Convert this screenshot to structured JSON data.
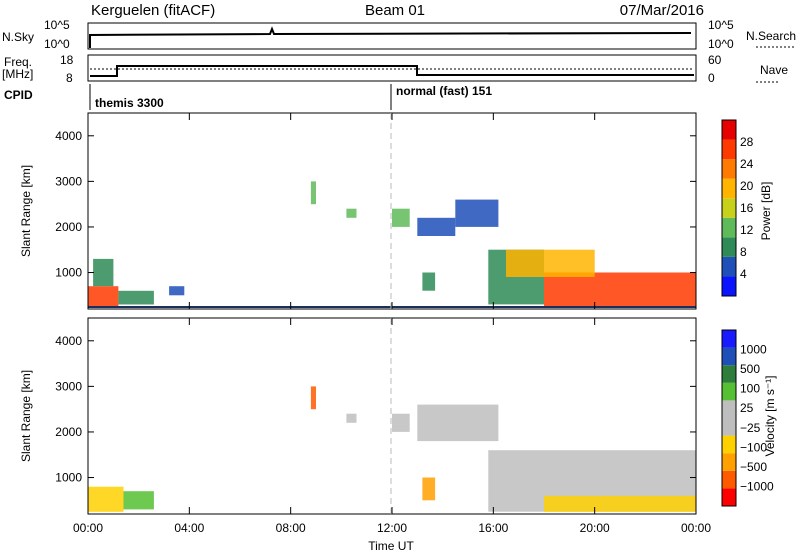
{
  "header": {
    "station": "Kerguelen (fitACF)",
    "beam": "Beam 01",
    "date": "07/Mar/2016"
  },
  "status_panels": {
    "nsky": {
      "label": "N.Sky",
      "ticks": [
        "10^5",
        "10^0"
      ]
    },
    "nsearch": {
      "label": "N.Search",
      "ticks": [
        "10^5",
        "10^0"
      ]
    },
    "freq": {
      "label_line1": "Freq.",
      "label_line2": "[MHz]",
      "ticks": [
        "18",
        "8"
      ]
    },
    "nave": {
      "label": "Nave",
      "ticks": [
        "60",
        "0"
      ]
    },
    "cpid": {
      "label": "CPID",
      "modes": [
        {
          "name": "themis 3300",
          "start_hour": 0
        },
        {
          "name": "normal (fast) 151",
          "start_hour": 12
        }
      ]
    }
  },
  "colors": {
    "power_scale": [
      "#0a14ff",
      "#1f4fb8",
      "#2e8b57",
      "#5fba5a",
      "#c8d11a",
      "#ffb400",
      "#ff7a00",
      "#ff3a00",
      "#e60000"
    ],
    "velocity_scale": [
      "#ff0000",
      "#ff5a00",
      "#ffa000",
      "#ffd000",
      "#bebebe",
      "#bebebe",
      "#55c033",
      "#2f7d3a",
      "#1f4fb8",
      "#1a1aff"
    ]
  },
  "chart_data": [
    {
      "type": "heatmap",
      "name": "power",
      "xlabel": "",
      "ylabel": "Slant Range [km]",
      "colorbar_label": "Power [dB]",
      "colorbar_ticks": [
        "28",
        "24",
        "20",
        "16",
        "12",
        "8",
        "4"
      ],
      "colorbar_range": [
        0,
        32
      ],
      "xlim_hours": [
        0,
        24
      ],
      "ylim": [
        200,
        4500
      ],
      "yticks": [
        "1000",
        "2000",
        "3000",
        "4000"
      ],
      "patches": [
        {
          "t0": 0.0,
          "t1": 1.2,
          "r0": 250,
          "r1": 700,
          "level": 26
        },
        {
          "t0": 0.2,
          "t1": 1.0,
          "r0": 700,
          "r1": 1300,
          "level": 10
        },
        {
          "t0": 1.2,
          "t1": 2.6,
          "r0": 300,
          "r1": 600,
          "level": 8
        },
        {
          "t0": 3.2,
          "t1": 3.8,
          "r0": 500,
          "r1": 700,
          "level": 7
        },
        {
          "t0": 8.8,
          "t1": 9.0,
          "r0": 2500,
          "r1": 3000,
          "level": 14
        },
        {
          "t0": 10.2,
          "t1": 10.6,
          "r0": 2200,
          "r1": 2400,
          "level": 12
        },
        {
          "t0": 12.0,
          "t1": 12.7,
          "r0": 2000,
          "r1": 2400,
          "level": 12
        },
        {
          "t0": 13.0,
          "t1": 14.5,
          "r0": 1800,
          "r1": 2200,
          "level": 6
        },
        {
          "t0": 14.5,
          "t1": 16.2,
          "r0": 2000,
          "r1": 2600,
          "level": 5
        },
        {
          "t0": 13.2,
          "t1": 13.7,
          "r0": 600,
          "r1": 1000,
          "level": 10
        },
        {
          "t0": 15.8,
          "t1": 18.0,
          "r0": 300,
          "r1": 1500,
          "level": 8
        },
        {
          "t0": 18.0,
          "t1": 24.0,
          "r0": 250,
          "r1": 1000,
          "level": 26
        },
        {
          "t0": 16.5,
          "t1": 20.0,
          "r0": 900,
          "r1": 1500,
          "level": 20
        }
      ]
    },
    {
      "type": "heatmap",
      "name": "velocity",
      "xlabel": "Time UT",
      "ylabel": "Slant Range [km]",
      "colorbar_label": "Velocity [m s⁻¹]",
      "colorbar_ticks": [
        "1000",
        "500",
        "100",
        "25",
        "−25",
        "−100",
        "−500",
        "−1000"
      ],
      "xlim_hours": [
        0,
        24
      ],
      "xticks": [
        "00:00",
        "04:00",
        "08:00",
        "12:00",
        "16:00",
        "20:00",
        "00:00"
      ],
      "ylim": [
        200,
        4500
      ],
      "yticks": [
        "1000",
        "2000",
        "3000",
        "4000"
      ],
      "patches": [
        {
          "t0": 0.0,
          "t1": 1.4,
          "r0": 250,
          "r1": 800,
          "level": 3
        },
        {
          "t0": 1.4,
          "t1": 2.6,
          "r0": 300,
          "r1": 700,
          "level": 6
        },
        {
          "t0": 8.8,
          "t1": 9.0,
          "r0": 2500,
          "r1": 3000,
          "level": 1
        },
        {
          "t0": 10.2,
          "t1": 10.6,
          "r0": 2200,
          "r1": 2400,
          "level": 5
        },
        {
          "t0": 12.0,
          "t1": 12.7,
          "r0": 2000,
          "r1": 2400,
          "level": 5
        },
        {
          "t0": 13.0,
          "t1": 16.2,
          "r0": 1800,
          "r1": 2600,
          "level": 4
        },
        {
          "t0": 13.2,
          "t1": 13.7,
          "r0": 500,
          "r1": 1000,
          "level": 2
        },
        {
          "t0": 15.8,
          "t1": 24.0,
          "r0": 250,
          "r1": 1600,
          "level": 5
        },
        {
          "t0": 18.0,
          "t1": 24.0,
          "r0": 250,
          "r1": 600,
          "level": 3
        }
      ]
    }
  ]
}
